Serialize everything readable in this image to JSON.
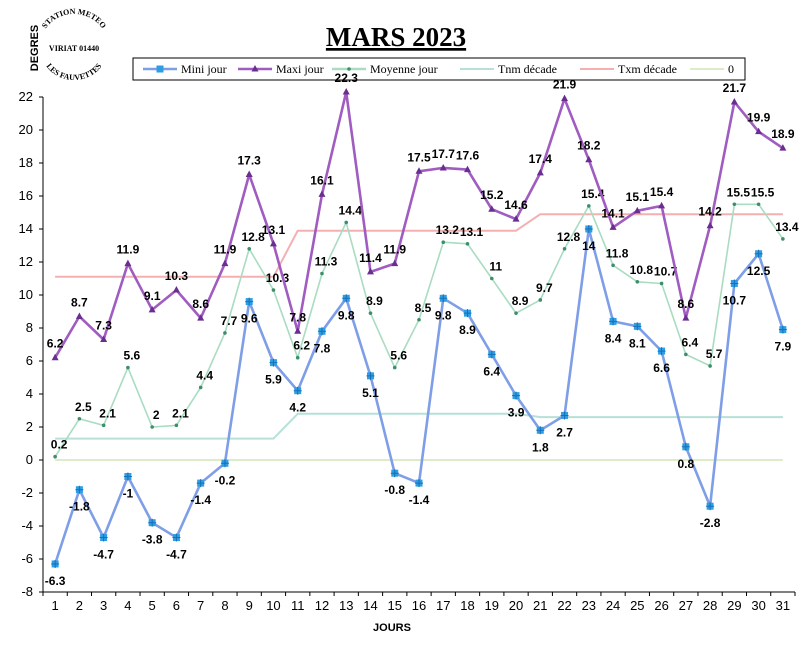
{
  "chart_data": {
    "type": "line",
    "title": "MARS 2023",
    "xlabel": "JOURS",
    "ylabel": "DEGRES",
    "x": [
      1,
      2,
      3,
      4,
      5,
      6,
      7,
      8,
      9,
      10,
      11,
      12,
      13,
      14,
      15,
      16,
      17,
      18,
      19,
      20,
      21,
      22,
      23,
      24,
      25,
      26,
      27,
      28,
      29,
      30,
      31
    ],
    "ylim": [
      -8,
      22
    ],
    "yticks": [
      -8,
      -6,
      -4,
      -2,
      0,
      2,
      4,
      6,
      8,
      10,
      12,
      14,
      16,
      18,
      20,
      22
    ],
    "legend_position": "top",
    "series": [
      {
        "name": "Mini jour",
        "color": "#7f9ee8",
        "marker_color": "#2e9de3",
        "marker": "star-square",
        "labels": "below",
        "values": [
          -6.3,
          -1.8,
          -4.7,
          -1,
          -3.8,
          -4.7,
          -1.4,
          -0.2,
          9.6,
          5.9,
          4.2,
          7.8,
          9.8,
          5.1,
          -0.8,
          -1.4,
          9.8,
          8.9,
          6.4,
          3.9,
          1.8,
          2.7,
          14,
          8.4,
          8.1,
          6.6,
          0.8,
          -2.8,
          10.7,
          12.5,
          7.9
        ]
      },
      {
        "name": "Maxi jour",
        "color": "#a05cc0",
        "marker_color": "#6a2d90",
        "marker": "triangle",
        "labels": "above",
        "values": [
          6.2,
          8.7,
          7.3,
          11.9,
          9.1,
          10.3,
          8.6,
          11.9,
          17.3,
          13.1,
          7.8,
          16.1,
          22.3,
          11.4,
          11.9,
          17.5,
          17.7,
          17.6,
          15.2,
          14.6,
          17.4,
          21.9,
          18.2,
          14.1,
          15.1,
          15.4,
          8.6,
          14.2,
          21.7,
          19.9,
          18.9
        ]
      },
      {
        "name": "Moyenne jour",
        "color": "#a9dcc1",
        "marker_color": "#3c8f6a",
        "marker": "dot",
        "labels": "right",
        "values": [
          0.2,
          2.5,
          2.1,
          5.6,
          2,
          2.1,
          4.4,
          7.7,
          12.8,
          10.3,
          6.2,
          11.3,
          14.4,
          8.9,
          5.6,
          8.5,
          13.2,
          13.1,
          11,
          8.9,
          9.7,
          12.8,
          15.4,
          11.8,
          10.8,
          10.7,
          6.4,
          5.7,
          15.5,
          15.5,
          13.4
        ]
      },
      {
        "name": "Tnm décade",
        "color": "#b6e0d8",
        "marker": "none",
        "values": [
          1.3,
          1.3,
          1.3,
          1.3,
          1.3,
          1.3,
          1.3,
          1.3,
          1.3,
          1.3,
          2.8,
          2.8,
          2.8,
          2.8,
          2.8,
          2.8,
          2.8,
          2.8,
          2.8,
          2.8,
          2.6,
          2.6,
          2.6,
          2.6,
          2.6,
          2.6,
          2.6,
          2.6,
          2.6,
          2.6,
          2.6
        ]
      },
      {
        "name": "Txm décade",
        "color": "#f4b0b0",
        "marker": "none",
        "values": [
          11.1,
          11.1,
          11.1,
          11.1,
          11.1,
          11.1,
          11.1,
          11.1,
          11.1,
          11.1,
          13.9,
          13.9,
          13.9,
          13.9,
          13.9,
          13.9,
          13.9,
          13.9,
          13.9,
          13.9,
          14.9,
          14.9,
          14.9,
          14.9,
          14.9,
          14.9,
          14.9,
          14.9,
          14.9,
          14.9,
          14.9
        ]
      },
      {
        "name": "0",
        "color": "#dcecc8",
        "marker": "none",
        "values": [
          0,
          0,
          0,
          0,
          0,
          0,
          0,
          0,
          0,
          0,
          0,
          0,
          0,
          0,
          0,
          0,
          0,
          0,
          0,
          0,
          0,
          0,
          0,
          0,
          0,
          0,
          0,
          0,
          0,
          0,
          0
        ]
      }
    ]
  },
  "stamp": {
    "top": "STATION METEO",
    "middle": "VIRIAT 01440",
    "bottom": "LES FAUVETTES"
  }
}
